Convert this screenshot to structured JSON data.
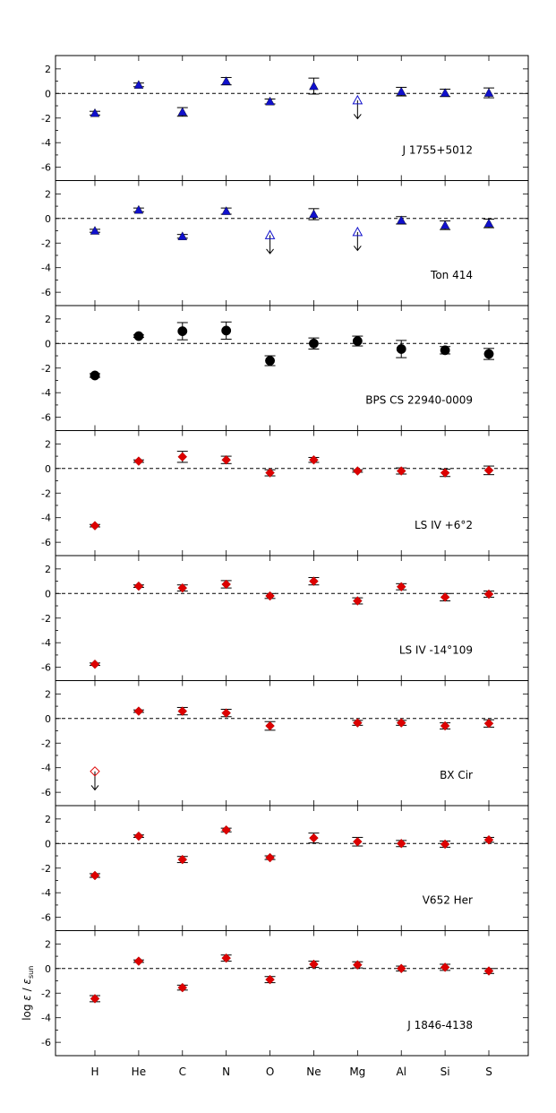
{
  "chart_data": {
    "type": "scatter",
    "categories": [
      "H",
      "He",
      "C",
      "N",
      "O",
      "Ne",
      "Mg",
      "Al",
      "Si",
      "S"
    ],
    "ylabel": "log ε / ε_sun",
    "ylabel_parts": {
      "pre": "log ",
      "eps": "ε",
      "mid": " / ",
      "eps2": "ε",
      "sub": "sun"
    },
    "ylim": [
      -6.5,
      2.5
    ],
    "yticks": [
      -6,
      -4,
      -2,
      0,
      2
    ],
    "ytick_labels": [
      "-6",
      "-4",
      "-2",
      "0",
      "2"
    ],
    "panels": [
      {
        "label": "J 1755+5012",
        "marker": "triangle",
        "color": "#1010cc",
        "points": [
          {
            "el": "H",
            "y": -1.6,
            "err": 0.15
          },
          {
            "el": "He",
            "y": 0.7,
            "err": 0.15
          },
          {
            "el": "C",
            "y": -1.5,
            "err": 0.35
          },
          {
            "el": "N",
            "y": 1.0,
            "err": 0.3
          },
          {
            "el": "O",
            "y": -0.65,
            "err": 0.2
          },
          {
            "el": "Ne",
            "y": 0.6,
            "err": 0.65
          },
          {
            "el": "Mg",
            "y": -0.55,
            "err": 0.0,
            "upper": true
          },
          {
            "el": "Al",
            "y": 0.15,
            "err": 0.35
          },
          {
            "el": "Si",
            "y": 0.05,
            "err": 0.3
          },
          {
            "el": "S",
            "y": 0.05,
            "err": 0.4
          }
        ]
      },
      {
        "label": "Ton 414",
        "marker": "triangle",
        "color": "#1010cc",
        "points": [
          {
            "el": "H",
            "y": -1.0,
            "err": 0.12
          },
          {
            "el": "He",
            "y": 0.7,
            "err": 0.15
          },
          {
            "el": "C",
            "y": -1.45,
            "err": 0.15
          },
          {
            "el": "N",
            "y": 0.6,
            "err": 0.25
          },
          {
            "el": "O",
            "y": -1.35,
            "err": 0.0,
            "upper": true
          },
          {
            "el": "Ne",
            "y": 0.35,
            "err": 0.45
          },
          {
            "el": "Mg",
            "y": -1.1,
            "err": 0.0,
            "upper": true
          },
          {
            "el": "Al",
            "y": -0.15,
            "err": 0.3
          },
          {
            "el": "Si",
            "y": -0.55,
            "err": 0.35
          },
          {
            "el": "S",
            "y": -0.4,
            "err": 0.35
          }
        ]
      },
      {
        "label": "BPS CS 22940-0009",
        "marker": "circle",
        "color": "#000000",
        "points": [
          {
            "el": "H",
            "y": -2.6,
            "err": 0.15
          },
          {
            "el": "He",
            "y": 0.6,
            "err": 0.1
          },
          {
            "el": "C",
            "y": 1.0,
            "err": 0.7
          },
          {
            "el": "N",
            "y": 1.05,
            "err": 0.7
          },
          {
            "el": "O",
            "y": -1.4,
            "err": 0.4
          },
          {
            "el": "Ne",
            "y": 0.0,
            "err": 0.45
          },
          {
            "el": "Mg",
            "y": 0.2,
            "err": 0.4
          },
          {
            "el": "Al",
            "y": -0.45,
            "err": 0.7
          },
          {
            "el": "Si",
            "y": -0.55,
            "err": 0.3
          },
          {
            "el": "S",
            "y": -0.85,
            "err": 0.45
          }
        ]
      },
      {
        "label": "LS IV +6°2",
        "marker": "diamond",
        "color": "#dd0000",
        "points": [
          {
            "el": "H",
            "y": -4.65,
            "err": 0.1
          },
          {
            "el": "He",
            "y": 0.6,
            "err": 0.1
          },
          {
            "el": "C",
            "y": 0.95,
            "err": 0.45
          },
          {
            "el": "N",
            "y": 0.7,
            "err": 0.3
          },
          {
            "el": "O",
            "y": -0.35,
            "err": 0.25
          },
          {
            "el": "Ne",
            "y": 0.7,
            "err": 0.2
          },
          {
            "el": "Mg",
            "y": -0.2,
            "err": 0.1
          },
          {
            "el": "Al",
            "y": -0.2,
            "err": 0.25
          },
          {
            "el": "Si",
            "y": -0.35,
            "err": 0.3
          },
          {
            "el": "S",
            "y": -0.15,
            "err": 0.35
          }
        ]
      },
      {
        "label": "LS IV -14°109",
        "marker": "diamond",
        "color": "#dd0000",
        "points": [
          {
            "el": "H",
            "y": -5.75,
            "err": 0.1
          },
          {
            "el": "He",
            "y": 0.6,
            "err": 0.1
          },
          {
            "el": "C",
            "y": 0.45,
            "err": 0.25
          },
          {
            "el": "N",
            "y": 0.75,
            "err": 0.3
          },
          {
            "el": "O",
            "y": -0.2,
            "err": 0.2
          },
          {
            "el": "Ne",
            "y": 1.0,
            "err": 0.3
          },
          {
            "el": "Mg",
            "y": -0.6,
            "err": 0.25
          },
          {
            "el": "Al",
            "y": 0.55,
            "err": 0.25
          },
          {
            "el": "Si",
            "y": -0.3,
            "err": 0.3
          },
          {
            "el": "S",
            "y": -0.05,
            "err": 0.25
          }
        ]
      },
      {
        "label": "BX Cir",
        "marker": "diamond",
        "color": "#dd0000",
        "points": [
          {
            "el": "H",
            "y": -4.3,
            "err": 0.0,
            "upper": true
          },
          {
            "el": "He",
            "y": 0.6,
            "err": 0.1
          },
          {
            "el": "C",
            "y": 0.6,
            "err": 0.3
          },
          {
            "el": "N",
            "y": 0.45,
            "err": 0.3
          },
          {
            "el": "O",
            "y": -0.6,
            "err": 0.35
          },
          {
            "el": "Ne",
            "y": null
          },
          {
            "el": "Mg",
            "y": -0.35,
            "err": 0.2
          },
          {
            "el": "Al",
            "y": -0.35,
            "err": 0.2
          },
          {
            "el": "Si",
            "y": -0.6,
            "err": 0.25
          },
          {
            "el": "S",
            "y": -0.4,
            "err": 0.3
          }
        ]
      },
      {
        "label": "V652 Her",
        "marker": "diamond",
        "color": "#dd0000",
        "points": [
          {
            "el": "H",
            "y": -2.6,
            "err": 0.15
          },
          {
            "el": "He",
            "y": 0.6,
            "err": 0.1
          },
          {
            "el": "C",
            "y": -1.3,
            "err": 0.25
          },
          {
            "el": "N",
            "y": 1.1,
            "err": 0.15
          },
          {
            "el": "O",
            "y": -1.15,
            "err": 0.15
          },
          {
            "el": "Ne",
            "y": 0.45,
            "err": 0.4
          },
          {
            "el": "Mg",
            "y": 0.15,
            "err": 0.35
          },
          {
            "el": "Al",
            "y": 0.0,
            "err": 0.25
          },
          {
            "el": "Si",
            "y": -0.05,
            "err": 0.25
          },
          {
            "el": "S",
            "y": 0.3,
            "err": 0.2
          }
        ]
      },
      {
        "label": "J 1846-4138",
        "marker": "diamond",
        "color": "#dd0000",
        "points": [
          {
            "el": "H",
            "y": -2.45,
            "err": 0.25
          },
          {
            "el": "He",
            "y": 0.6,
            "err": 0.1
          },
          {
            "el": "C",
            "y": -1.55,
            "err": 0.2
          },
          {
            "el": "N",
            "y": 0.85,
            "err": 0.25
          },
          {
            "el": "O",
            "y": -0.9,
            "err": 0.25
          },
          {
            "el": "Ne",
            "y": 0.35,
            "err": 0.25
          },
          {
            "el": "Mg",
            "y": 0.3,
            "err": 0.25
          },
          {
            "el": "Al",
            "y": 0.0,
            "err": 0.2
          },
          {
            "el": "Si",
            "y": 0.1,
            "err": 0.25
          },
          {
            "el": "S",
            "y": -0.2,
            "err": 0.2
          }
        ]
      }
    ]
  }
}
